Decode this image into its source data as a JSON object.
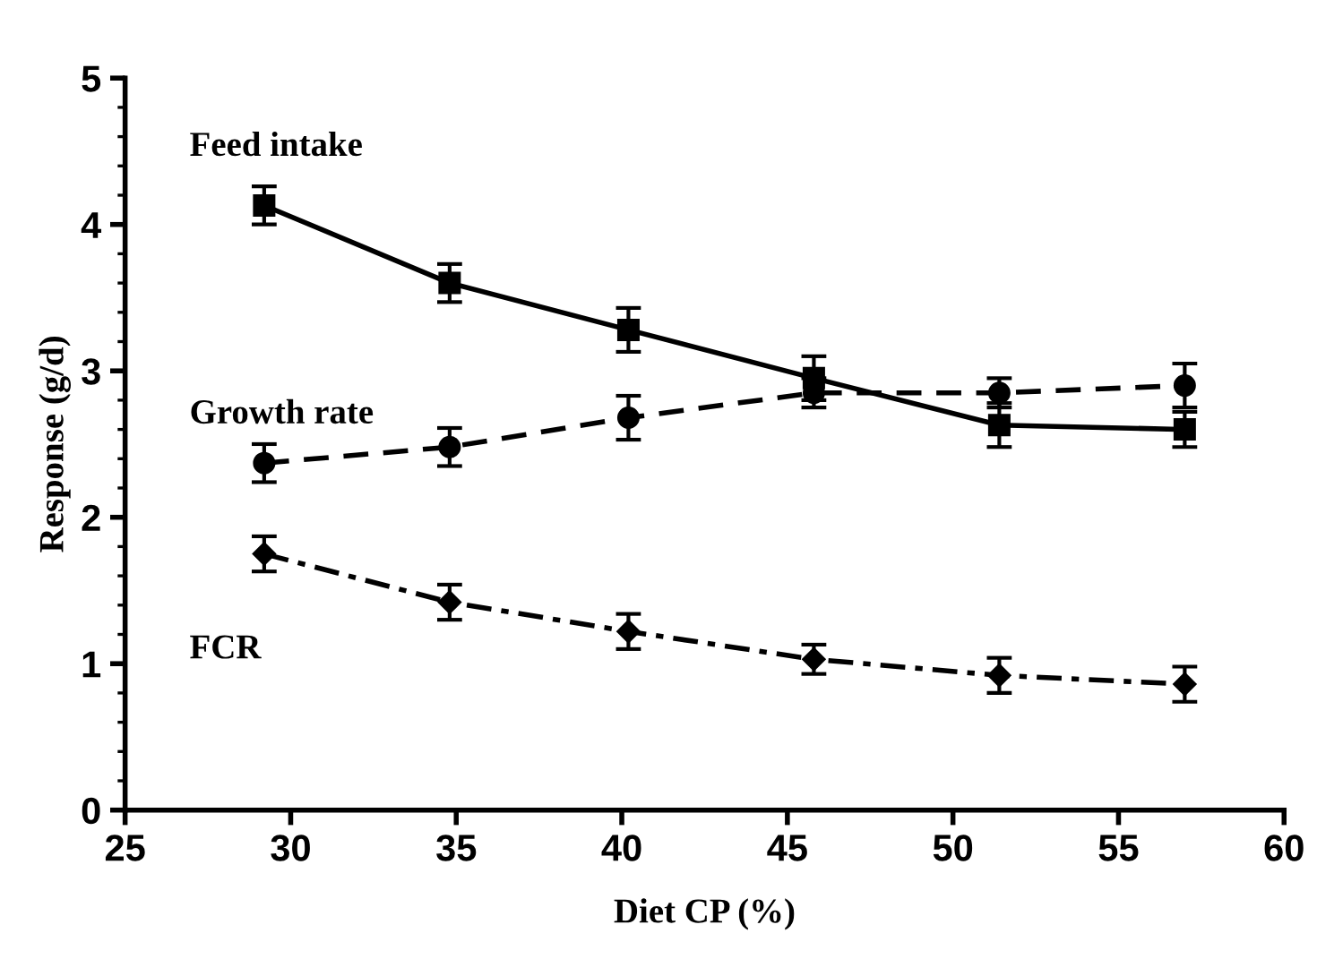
{
  "chart_data": {
    "type": "line",
    "xlabel": "Diet CP (%)",
    "ylabel": "Response (g/d)",
    "x": [
      29.2,
      34.8,
      40.2,
      45.8,
      51.4,
      57.0
    ],
    "series": [
      {
        "name": "Feed intake",
        "color": "#000000",
        "marker": "square",
        "line_style": "solid",
        "values": [
          4.13,
          3.6,
          3.28,
          2.95,
          2.63,
          2.6
        ],
        "errors": [
          0.13,
          0.13,
          0.15,
          0.15,
          0.15,
          0.12
        ]
      },
      {
        "name": "Growth rate",
        "color": "#000000",
        "marker": "circle",
        "line_style": "dashed",
        "values": [
          2.37,
          2.48,
          2.68,
          2.85,
          2.85,
          2.9
        ],
        "errors": [
          0.13,
          0.13,
          0.15,
          0.1,
          0.1,
          0.15
        ]
      },
      {
        "name": "FCR",
        "color": "#000000",
        "marker": "diamond",
        "line_style": "dotted",
        "values": [
          1.75,
          1.42,
          1.22,
          1.03,
          0.92,
          0.86
        ],
        "errors": [
          0.12,
          0.12,
          0.12,
          0.1,
          0.12,
          0.12
        ]
      }
    ],
    "xlim": [
      25,
      60
    ],
    "xticks": [
      25,
      30,
      35,
      40,
      45,
      50,
      55,
      60
    ],
    "ylim": [
      0,
      5
    ],
    "yticks": [
      0,
      1,
      2,
      3,
      4,
      5
    ],
    "grid": false,
    "legend": false
  }
}
